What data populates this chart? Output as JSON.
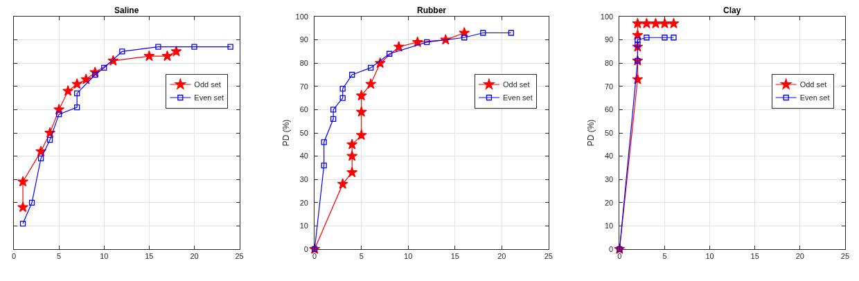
{
  "chart_data": [
    {
      "type": "line",
      "title": "Saline",
      "xlim": [
        0,
        25
      ],
      "xticks": [
        0,
        5,
        10,
        15,
        20,
        25
      ],
      "ylim": [
        0,
        100
      ],
      "yticks": [
        0,
        10,
        20,
        30,
        40,
        50,
        60,
        70,
        80,
        90,
        100
      ],
      "grid": true,
      "legend": "right",
      "tick_labels": "x",
      "series": [
        {
          "name": "Odd set",
          "color": "#ff0000",
          "marker": "star",
          "x": [
            1,
            1,
            3,
            4,
            5,
            6,
            7,
            8,
            9,
            11,
            15,
            17,
            18
          ],
          "values": [
            18,
            29,
            42,
            50,
            60,
            68,
            71,
            73,
            76,
            81,
            83,
            83,
            85
          ]
        },
        {
          "name": "Even set",
          "color": "#0000ff",
          "marker": "square",
          "x": [
            1,
            2,
            3,
            4,
            5,
            7,
            7,
            9,
            10,
            12,
            16,
            20,
            24
          ],
          "values": [
            11,
            20,
            39,
            47,
            58,
            61,
            67,
            75,
            78,
            85,
            87,
            87,
            87
          ]
        }
      ]
    },
    {
      "type": "line",
      "title": "Rubber",
      "ylabel": "PD (%)",
      "xlim": [
        0,
        25
      ],
      "xticks": [
        0,
        5,
        10,
        15,
        20,
        25
      ],
      "ylim": [
        0,
        100
      ],
      "yticks": [
        0,
        10,
        20,
        30,
        40,
        50,
        60,
        70,
        80,
        90,
        100
      ],
      "grid": true,
      "legend": "right",
      "series": [
        {
          "name": "Odd set",
          "color": "#ff0000",
          "marker": "star",
          "x": [
            0,
            3,
            4,
            4,
            4,
            5,
            5,
            5,
            6,
            7,
            9,
            11,
            14,
            16
          ],
          "values": [
            0,
            28,
            33,
            40,
            45,
            49,
            59,
            66,
            71,
            80,
            87,
            89,
            90,
            93
          ]
        },
        {
          "name": "Even set",
          "color": "#0000ff",
          "marker": "square",
          "x": [
            0,
            1,
            1,
            2,
            2,
            3,
            3,
            4,
            6,
            8,
            12,
            16,
            18,
            21
          ],
          "values": [
            0,
            36,
            46,
            56,
            60,
            65,
            69,
            75,
            78,
            84,
            89,
            91,
            93,
            93
          ]
        }
      ]
    },
    {
      "type": "line",
      "title": "Clay",
      "ylabel": "PD (%)",
      "xlim": [
        0,
        25
      ],
      "xticks": [
        0,
        5,
        10,
        15,
        20,
        25
      ],
      "ylim": [
        0,
        100
      ],
      "yticks": [
        0,
        10,
        20,
        30,
        40,
        50,
        60,
        70,
        80,
        90,
        100
      ],
      "grid": true,
      "legend": "right",
      "series": [
        {
          "name": "Odd set",
          "color": "#ff0000",
          "marker": "star",
          "x": [
            0,
            2,
            2,
            2,
            2,
            2,
            3,
            4,
            5,
            6
          ],
          "values": [
            0,
            73,
            81,
            87,
            92,
            97,
            97,
            97,
            97,
            97
          ]
        },
        {
          "name": "Even set",
          "color": "#0000ff",
          "marker": "square",
          "x": [
            0,
            2,
            2,
            2,
            3,
            5,
            6
          ],
          "values": [
            0,
            81,
            88,
            90,
            91,
            91,
            91
          ]
        }
      ]
    }
  ]
}
